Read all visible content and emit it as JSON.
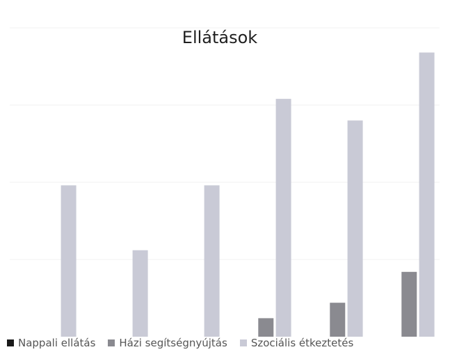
{
  "chart_data": {
    "type": "bar",
    "title": "Ellátások",
    "categories": [
      "",
      "",
      "",
      "",
      "",
      ""
    ],
    "series": [
      {
        "name": "Nappali ellátás",
        "color": "#1a1a1a",
        "values": [
          0,
          0,
          0,
          0,
          0,
          0
        ]
      },
      {
        "name": "Házi segítségnyújtás",
        "color": "#8a8a90",
        "values": [
          0,
          0,
          0,
          6,
          11,
          21
        ]
      },
      {
        "name": "Szociális étkeztetés",
        "color": "#c9cad6",
        "values": [
          49,
          28,
          49,
          77,
          70,
          92
        ]
      }
    ],
    "ylim": [
      0,
      100
    ],
    "grid": true,
    "legend_position": "bottom"
  }
}
